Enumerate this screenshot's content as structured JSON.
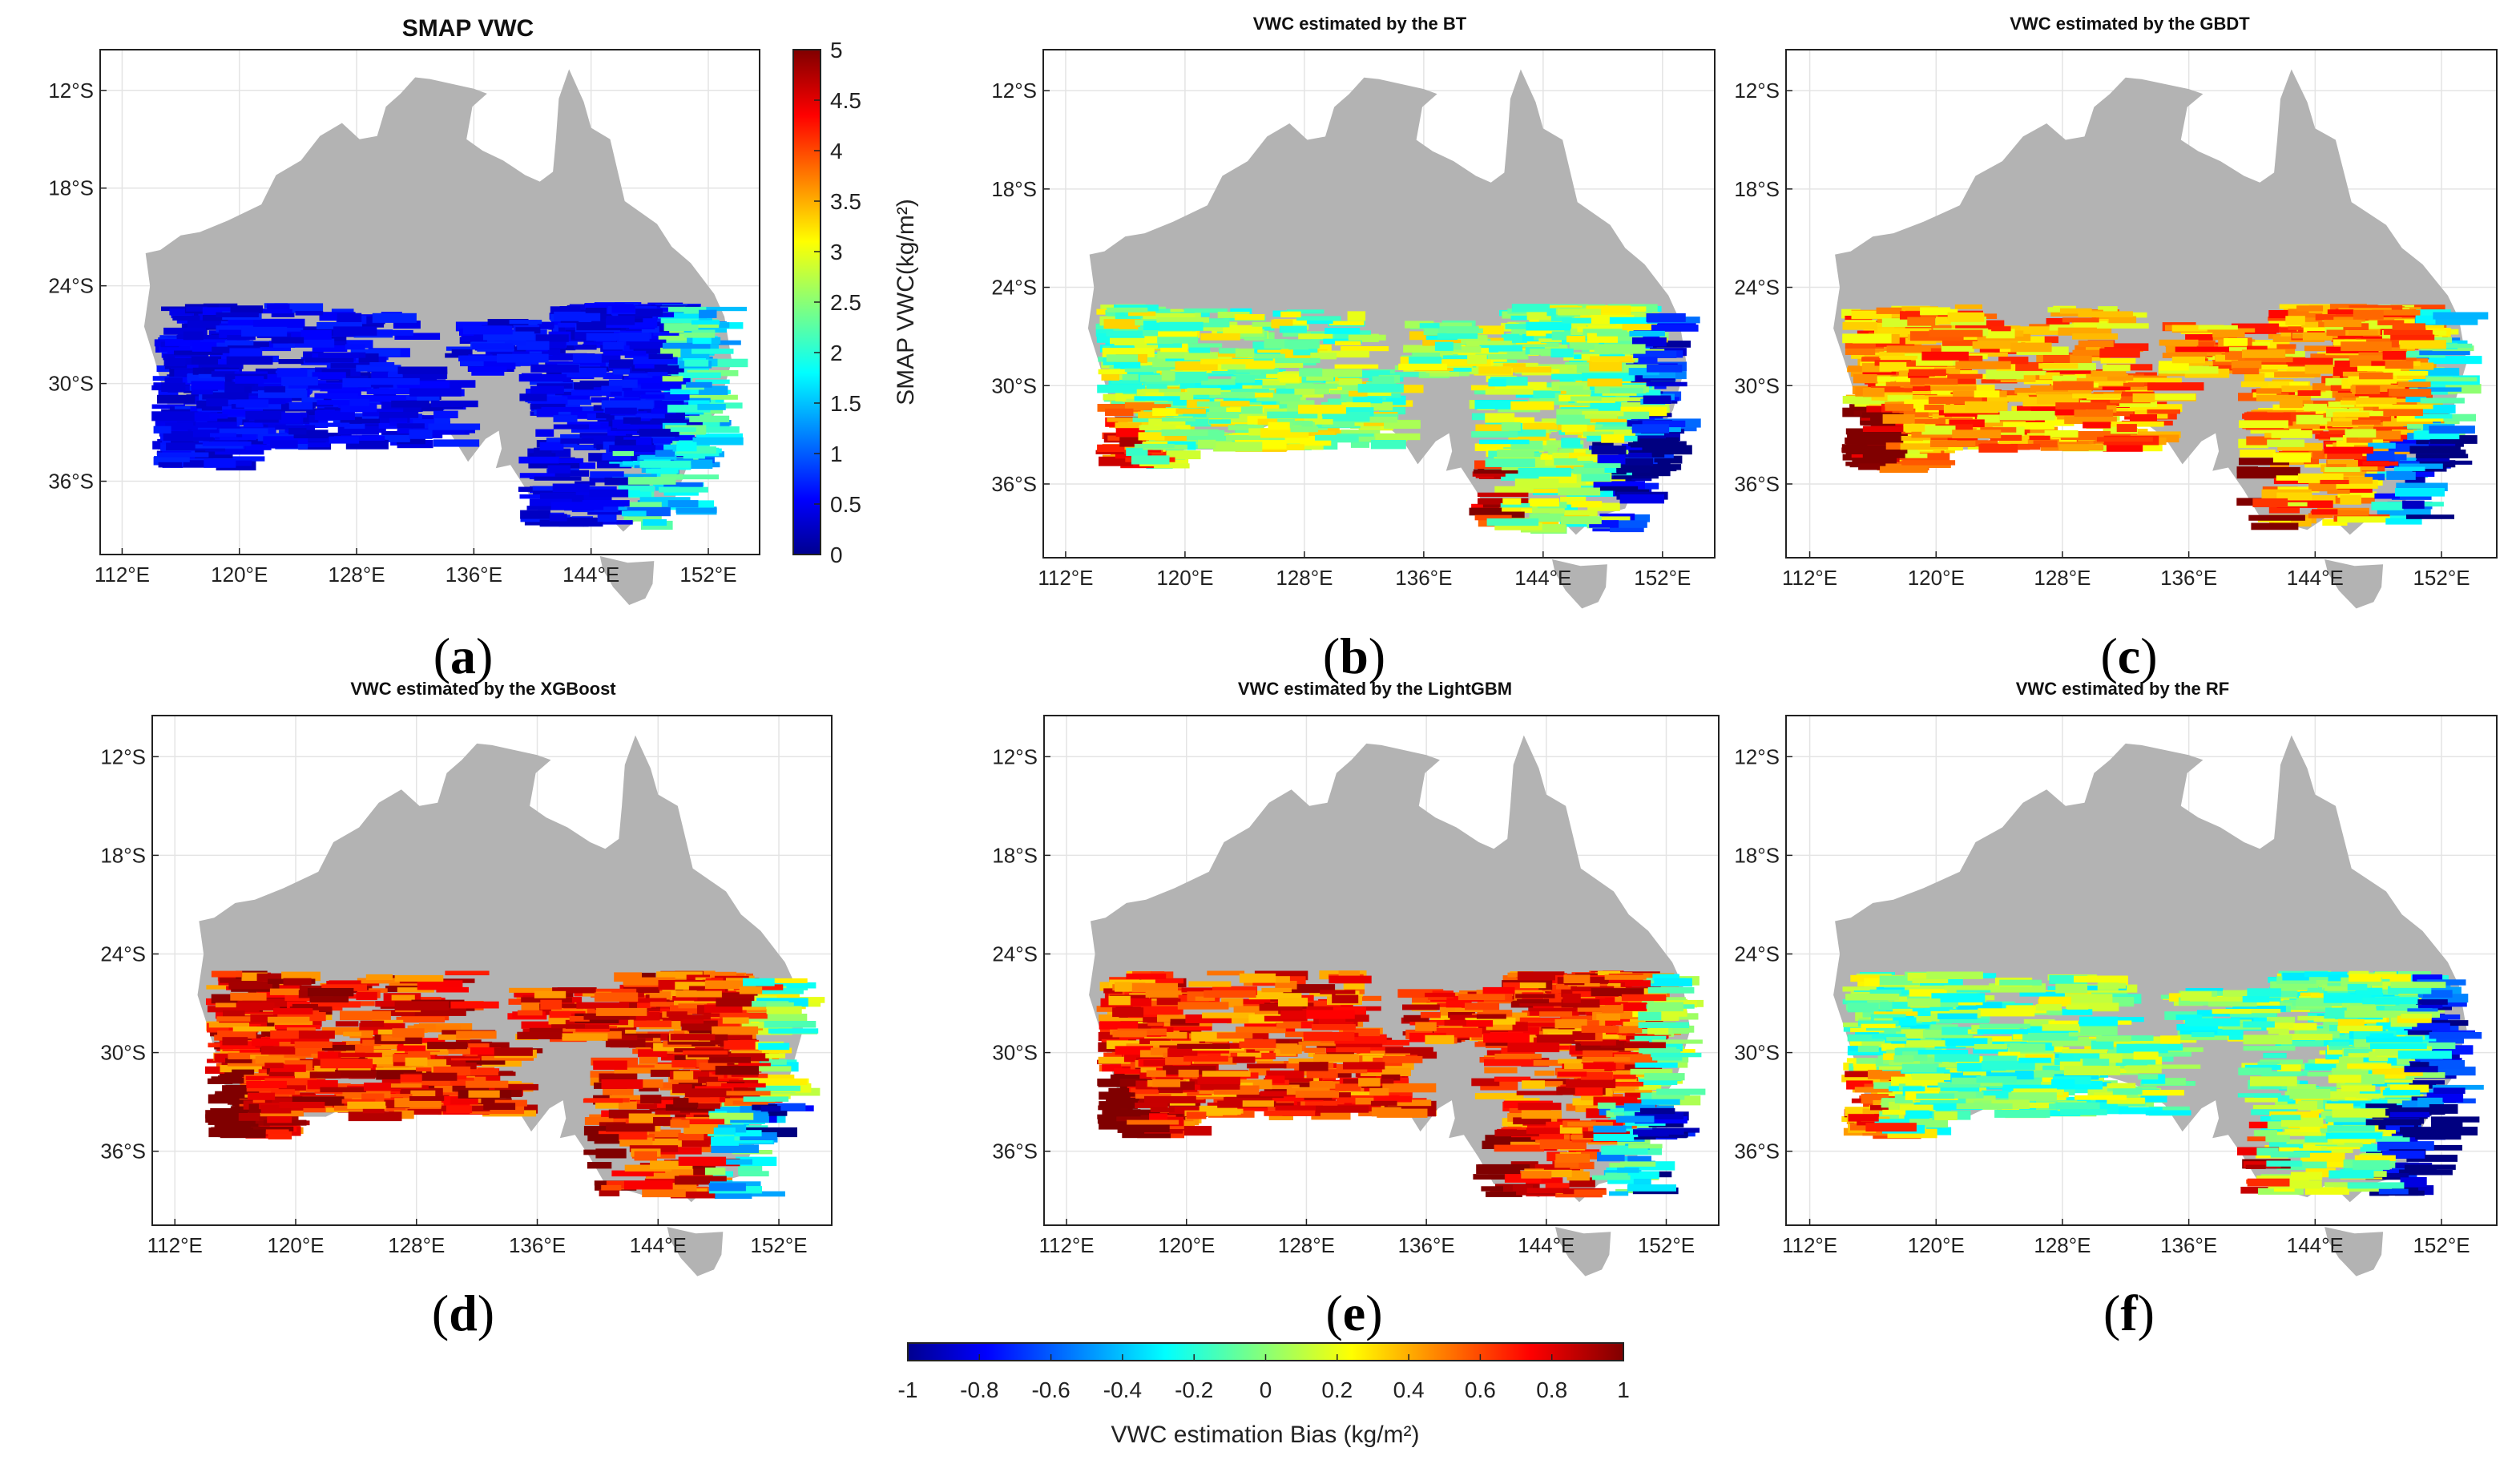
{
  "figure": {
    "panels": [
      {
        "id": "a",
        "title": "SMAP VWC",
        "label_letter": "a",
        "mode": "vwc"
      },
      {
        "id": "b",
        "title": "VWC estimated by the BT",
        "label_letter": "b",
        "mode": "bias",
        "bias_level": 0.05
      },
      {
        "id": "c",
        "title": "VWC estimated by the GBDT",
        "label_letter": "c",
        "mode": "bias",
        "bias_level": 0.45
      },
      {
        "id": "d",
        "title": "VWC estimated by the XGBoost",
        "label_letter": "d",
        "mode": "bias",
        "bias_level": 0.7
      },
      {
        "id": "e",
        "title": "VWC estimated by the LightGBM",
        "label_letter": "e",
        "mode": "bias",
        "bias_level": 0.65
      },
      {
        "id": "f",
        "title": "VWC estimated by the RF",
        "label_letter": "f",
        "mode": "bias",
        "bias_level": 0.0
      }
    ],
    "longitude_ticks": [
      "112°E",
      "120°E",
      "128°E",
      "136°E",
      "144°E",
      "152°E"
    ],
    "latitude_ticks": [
      "12°S",
      "18°S",
      "24°S",
      "30°S",
      "36°S"
    ],
    "land_color": "#b3b3b3",
    "vwc_colorbar": {
      "label": "SMAP VWC(kg/m²)",
      "min": 0,
      "max": 5,
      "ticks": [
        "0",
        "0.5",
        "1",
        "1.5",
        "2",
        "2.5",
        "3",
        "3.5",
        "4",
        "4.5",
        "5"
      ]
    },
    "bias_colorbar": {
      "label": "VWC estimation Bias (kg/m²)",
      "min": -1,
      "max": 1,
      "ticks": [
        "-1",
        "-0.8",
        "-0.6",
        "-0.4",
        "-0.2",
        "0",
        "0.2",
        "0.4",
        "0.6",
        "0.8",
        "1"
      ]
    },
    "colormap": "jet"
  }
}
